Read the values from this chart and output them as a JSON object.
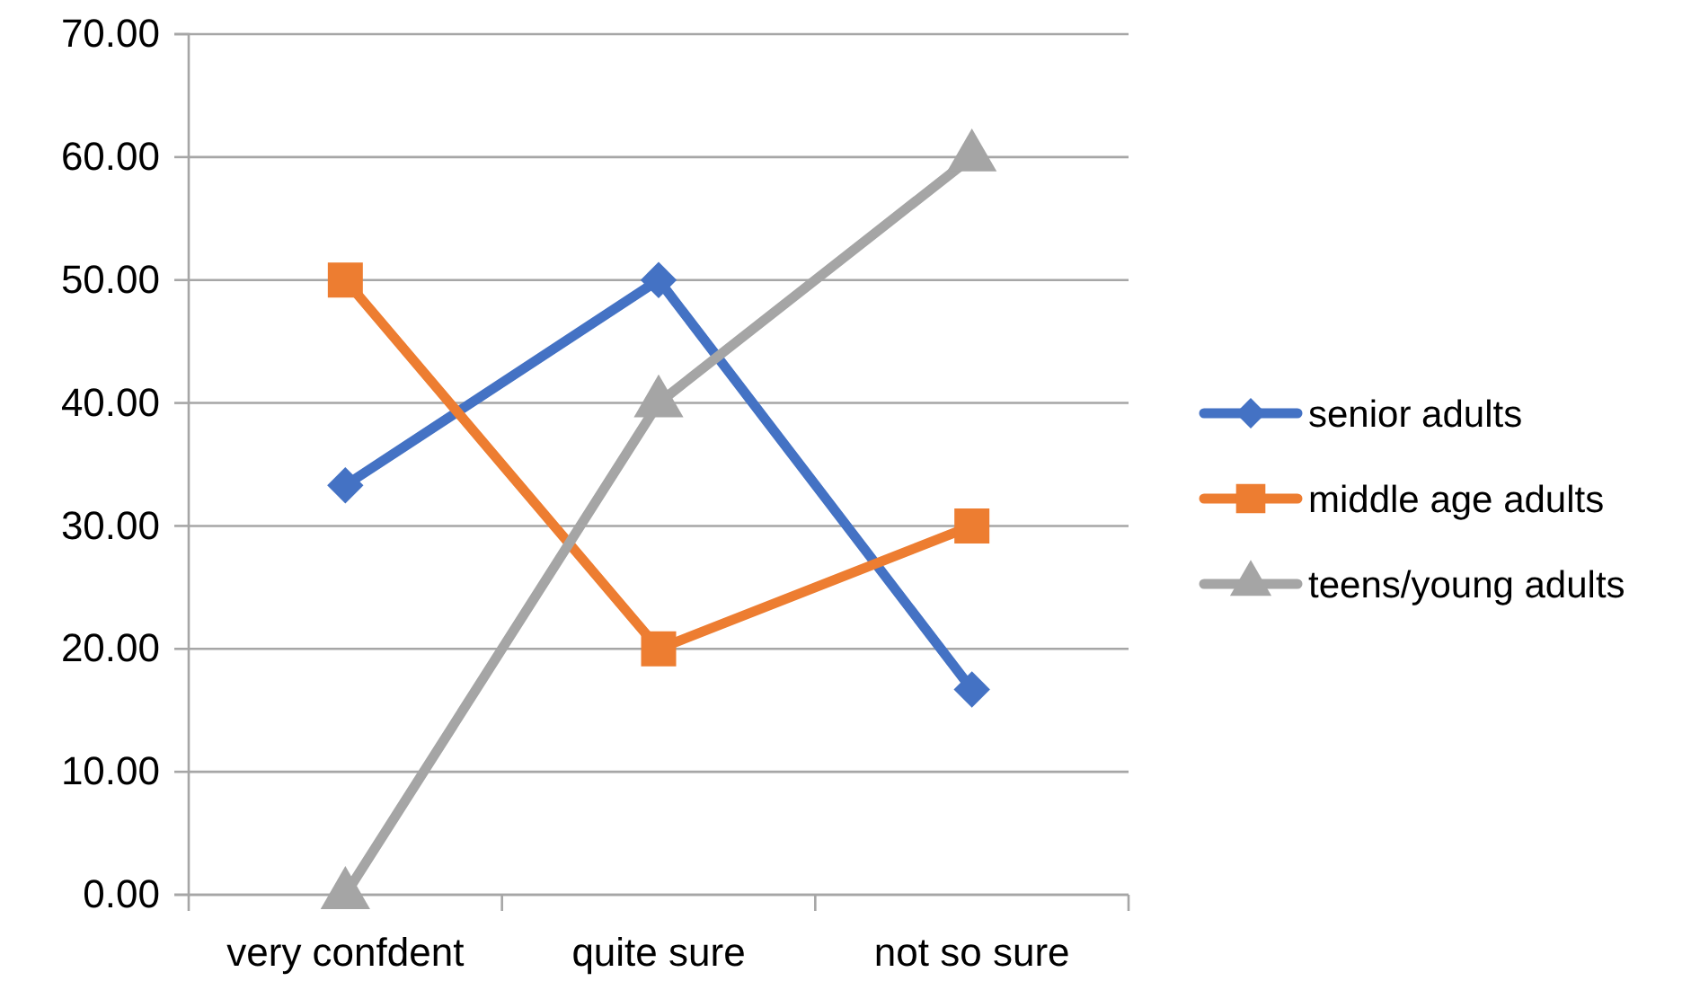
{
  "chart_data": {
    "type": "line",
    "categories": [
      "very confdent",
      "quite sure",
      "not so sure"
    ],
    "series": [
      {
        "name": "senior adults",
        "color": "#4472c4",
        "marker": "diamond",
        "values": [
          33.3,
          50,
          16.7
        ]
      },
      {
        "name": "middle age adults",
        "color": "#ed7d31",
        "marker": "square",
        "values": [
          50,
          20,
          30
        ]
      },
      {
        "name": "teens/young adults",
        "color": "#a5a5a5",
        "marker": "triangle",
        "values": [
          0,
          40,
          60
        ]
      }
    ],
    "ylim": [
      0,
      70
    ],
    "yticks": [
      {
        "value": 0,
        "label": "0.00"
      },
      {
        "value": 10,
        "label": "10.00"
      },
      {
        "value": 20,
        "label": "20.00"
      },
      {
        "value": 30,
        "label": "30.00"
      },
      {
        "value": 40,
        "label": "40.00"
      },
      {
        "value": 50,
        "label": "50.00"
      },
      {
        "value": 60,
        "label": "60.00"
      },
      {
        "value": 70,
        "label": "70.00"
      }
    ],
    "grid": "y",
    "legend": "right",
    "line_style": "solid"
  }
}
